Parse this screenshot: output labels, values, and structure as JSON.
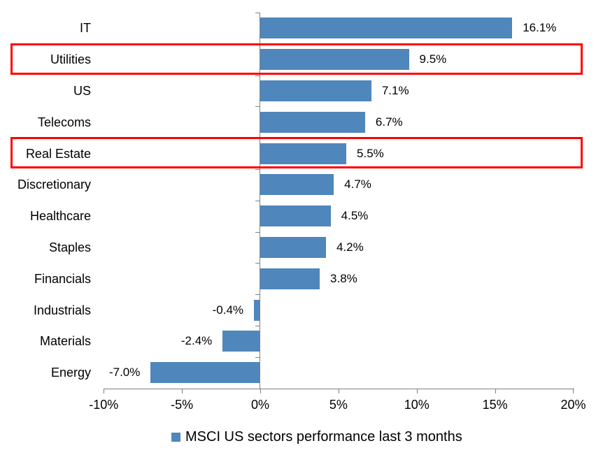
{
  "chart_data": {
    "type": "bar",
    "orientation": "horizontal",
    "title": "",
    "xlabel": "",
    "ylabel": "",
    "categories": [
      "IT",
      "Utilities",
      "US",
      "Telecoms",
      "Real Estate",
      "Discretionary",
      "Healthcare",
      "Staples",
      "Financials",
      "Industrials",
      "Materials",
      "Energy"
    ],
    "values": [
      16.1,
      9.5,
      7.1,
      6.7,
      5.5,
      4.7,
      4.5,
      4.2,
      3.8,
      -0.4,
      -2.4,
      -7.0
    ],
    "value_labels": [
      "16.1%",
      "9.5%",
      "7.1%",
      "6.7%",
      "5.5%",
      "4.7%",
      "4.5%",
      "4.2%",
      "3.8%",
      "-0.4%",
      "-2.4%",
      "-7.0%"
    ],
    "highlighted_categories": [
      "Utilities",
      "Real Estate"
    ],
    "x_tick_values": [
      -10,
      -5,
      0,
      5,
      10,
      15,
      20
    ],
    "x_tick_labels": [
      "-10%",
      "-5%",
      "0%",
      "5%",
      "10%",
      "15%",
      "20%"
    ],
    "xlim": [
      -10,
      20
    ],
    "grid": false,
    "legend": "MSCI US sectors performance last 3 months",
    "legend_position": "bottom-center",
    "colors": {
      "bar": "#4F86BC",
      "highlight": "#FF0000",
      "axis": "#808080",
      "text": "#000000",
      "background": "#FFFFFF"
    }
  }
}
